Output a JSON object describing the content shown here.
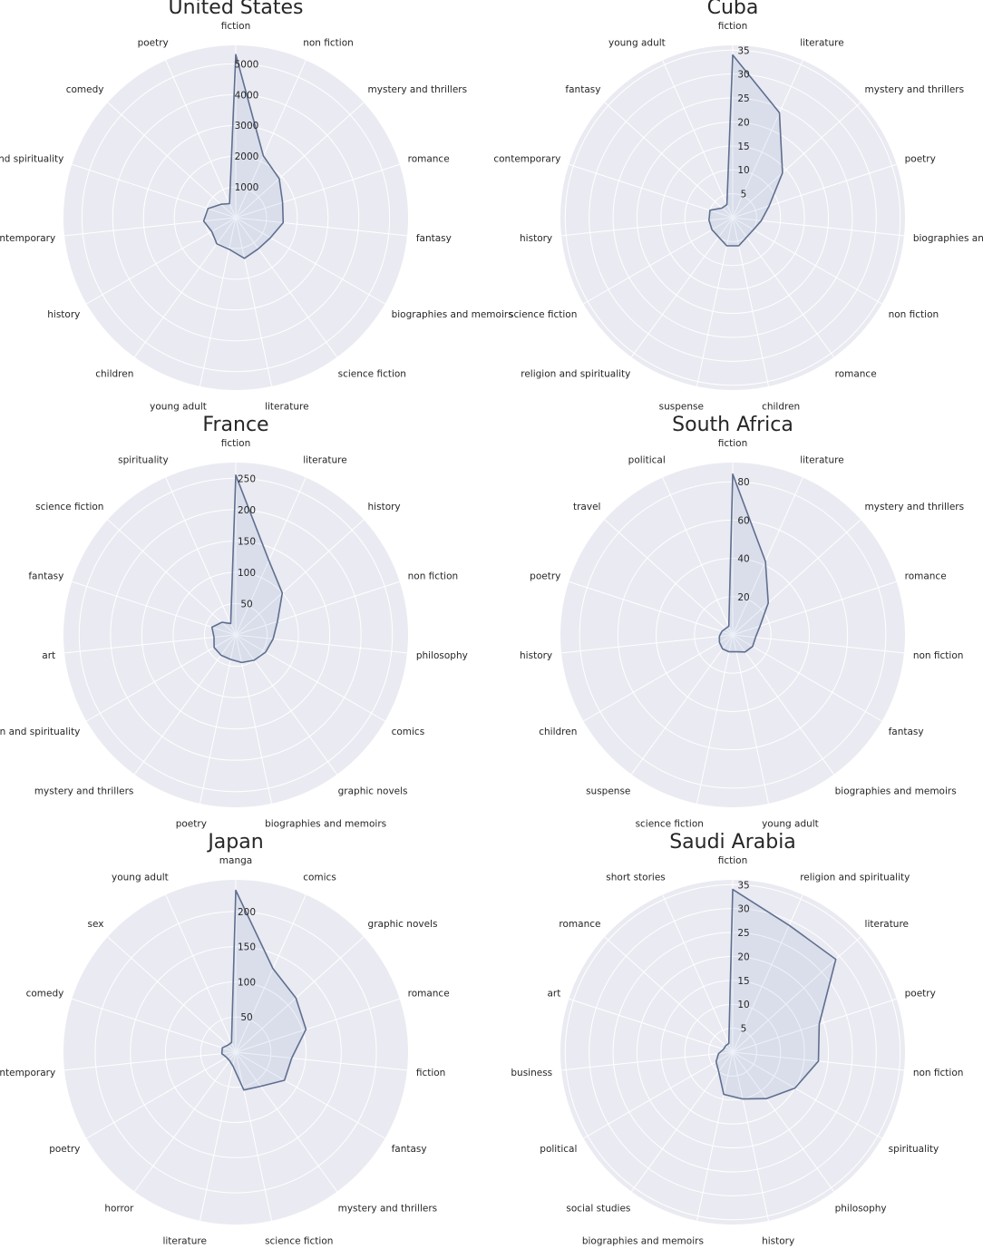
{
  "figure": {
    "background": "#ffffff",
    "panel_color": "#eaeaf2",
    "grid_color": "#ffffff",
    "line_color": "#5f6f8f",
    "fill_color": "#4c72b0"
  },
  "chart_data": [
    {
      "type": "radar",
      "title": "United States",
      "categories": [
        "fiction",
        "non fiction",
        "mystery and thrillers",
        "romance",
        "fantasy",
        "biographies and memoirs",
        "science fiction",
        "literature",
        "young adult",
        "children",
        "history",
        "contemporary",
        "religion and spirituality",
        "comedy",
        "poetry"
      ],
      "values": [
        5300,
        2200,
        1900,
        1600,
        1550,
        1300,
        1250,
        1350,
        1050,
        1050,
        900,
        1050,
        950,
        650,
        500
      ],
      "rlim": [
        0,
        5600
      ],
      "rticks": [
        1000,
        2000,
        3000,
        4000,
        5000
      ],
      "rtick_labels": [
        "1000",
        "2000",
        "3000",
        "4000",
        "5000"
      ],
      "grid": true
    },
    {
      "type": "radar",
      "title": "Cuba",
      "categories": [
        "fiction",
        "literature",
        "mystery and thrillers",
        "poetry",
        "biographies and memoirs",
        "non fiction",
        "romance",
        "children",
        "suspense",
        "religion and spirituality",
        "science fiction",
        "history",
        "contemporary",
        "fantasy",
        "young adult"
      ],
      "values": [
        34,
        24,
        14,
        8,
        6,
        5,
        5,
        6,
        6,
        5,
        5,
        5,
        5,
        3,
        3
      ],
      "rlim": [
        0,
        36
      ],
      "rticks": [
        5,
        10,
        15,
        20,
        25,
        30,
        35
      ],
      "rtick_labels": [
        "5",
        "10",
        "15",
        "20",
        "25",
        "30",
        "35"
      ],
      "grid": true
    },
    {
      "type": "radar",
      "title": "France",
      "categories": [
        "fiction",
        "literature",
        "history",
        "non fiction",
        "philosophy",
        "comics",
        "graphic novels",
        "biographies and memoirs",
        "poetry",
        "mystery and thrillers",
        "religion and spirituality",
        "art",
        "fantasy",
        "science fiction",
        "spirituality"
      ],
      "values": [
        255,
        130,
        100,
        70,
        60,
        55,
        50,
        45,
        40,
        40,
        40,
        35,
        40,
        30,
        20
      ],
      "rlim": [
        0,
        275
      ],
      "rticks": [
        50,
        100,
        150,
        200,
        250
      ],
      "rtick_labels": [
        "50",
        "100",
        "150",
        "200",
        "250"
      ],
      "grid": true
    },
    {
      "type": "radar",
      "title": "South Africa",
      "categories": [
        "fiction",
        "literature",
        "mystery and thrillers",
        "romance",
        "non fiction",
        "fantasy",
        "biographies and memoirs",
        "young adult",
        "science fiction",
        "suspense",
        "children",
        "history",
        "poetry",
        "travel",
        "political"
      ],
      "values": [
        84,
        42,
        25,
        15,
        12,
        12,
        11,
        9,
        9,
        9,
        8,
        7,
        6,
        5,
        5
      ],
      "rlim": [
        0,
        90
      ],
      "rticks": [
        20,
        40,
        60,
        80
      ],
      "rtick_labels": [
        "20",
        "40",
        "60",
        "80"
      ],
      "grid": true
    },
    {
      "type": "radar",
      "title": "Japan",
      "categories": [
        "manga",
        "comics",
        "graphic novels",
        "romance",
        "fiction",
        "fantasy",
        "mystery and thrillers",
        "science fiction",
        "literature",
        "horror",
        "poetry",
        "contemporary",
        "comedy",
        "sex",
        "young adult"
      ],
      "values": [
        230,
        130,
        115,
        105,
        80,
        80,
        60,
        55,
        20,
        15,
        15,
        20,
        20,
        15,
        15
      ],
      "rlim": [
        0,
        245
      ],
      "rticks": [
        50,
        100,
        150,
        200
      ],
      "rtick_labels": [
        "50",
        "100",
        "150",
        "200"
      ],
      "grid": true
    },
    {
      "type": "radar",
      "title": "Saudi Arabia",
      "categories": [
        "fiction",
        "religion and spirituality",
        "literature",
        "poetry",
        "non fiction",
        "spirituality",
        "philosophy",
        "history",
        "biographies and memoirs",
        "social studies",
        "political",
        "business",
        "art",
        "romance",
        "short stories"
      ],
      "values": [
        34,
        29,
        29,
        19,
        18,
        15,
        12,
        10,
        9,
        5,
        4,
        3,
        2,
        2,
        2
      ],
      "rlim": [
        0,
        36
      ],
      "rticks": [
        5,
        10,
        15,
        20,
        25,
        30,
        35
      ],
      "rtick_labels": [
        "5",
        "10",
        "15",
        "20",
        "25",
        "30",
        "35"
      ],
      "grid": true
    }
  ]
}
